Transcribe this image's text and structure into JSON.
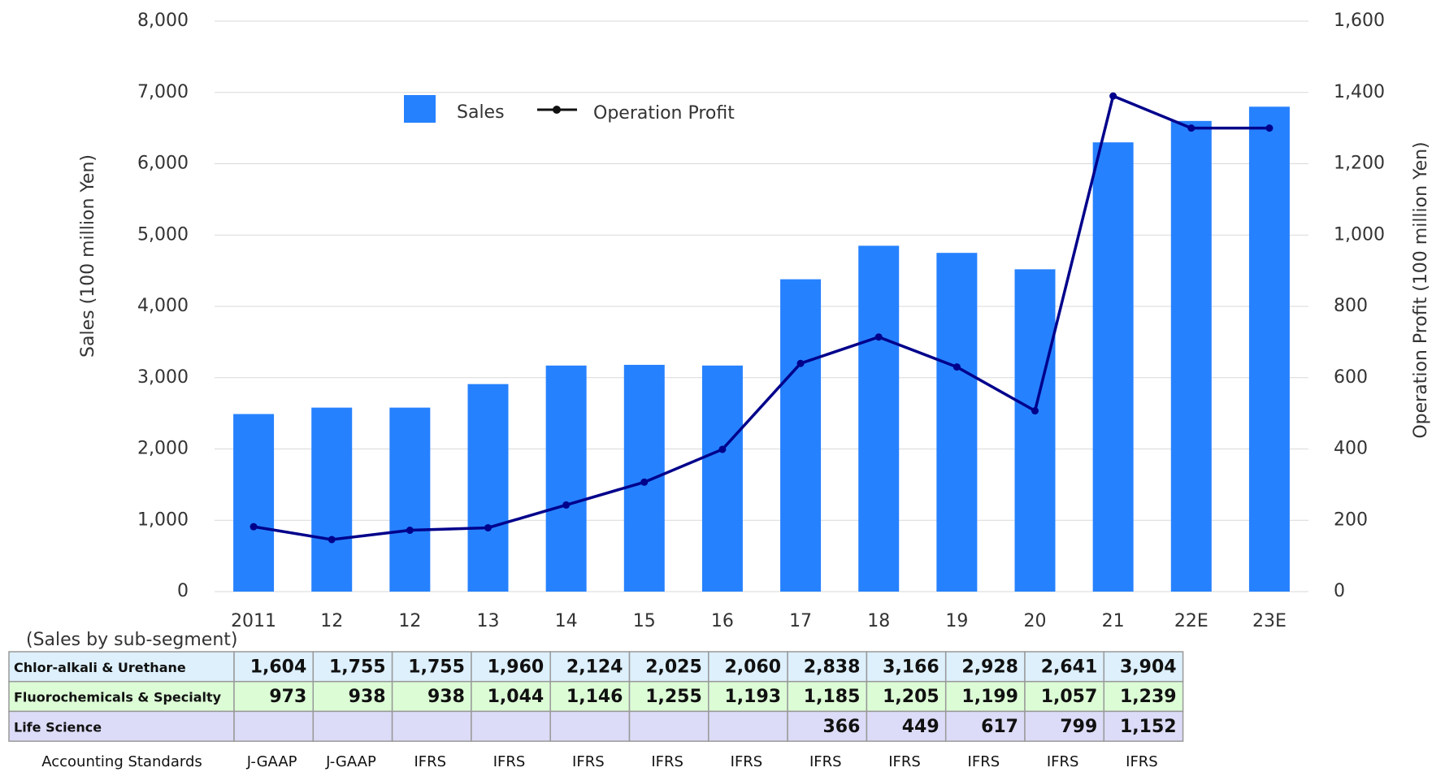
{
  "chart_data": {
    "type": "bar_line",
    "categories": [
      "2011",
      "12",
      "12",
      "13",
      "14",
      "15",
      "16",
      "17",
      "18",
      "19",
      "20",
      "21",
      "22E",
      "23E"
    ],
    "series": [
      {
        "name": "Sales",
        "color": "#2681ff",
        "type": "bar",
        "values": [
          2490,
          2580,
          2580,
          2910,
          3170,
          3180,
          3170,
          4380,
          4850,
          4750,
          4520,
          6300,
          6600,
          6800
        ]
      },
      {
        "name": "Operation Profit",
        "color": "#00008b",
        "type": "line",
        "axis": "y2",
        "values": [
          182,
          146,
          172,
          179,
          243,
          307,
          399,
          640,
          714,
          630,
          507,
          1390,
          1300,
          1300
        ]
      }
    ],
    "ylabel": "Sales (100 million Yen)",
    "y2label": "Operation Profit (100 million Yen)",
    "ylim": [
      0,
      8000
    ],
    "yticks": [
      {
        "value": 0,
        "label": "0"
      },
      {
        "value": 1000,
        "label": "1,000"
      },
      {
        "value": 2000,
        "label": "2,000"
      },
      {
        "value": 3000,
        "label": "3,000"
      },
      {
        "value": 4000,
        "label": "4,000"
      },
      {
        "value": 5000,
        "label": "5,000"
      },
      {
        "value": 6000,
        "label": "6,000"
      },
      {
        "value": 7000,
        "label": "7,000"
      },
      {
        "value": 8000,
        "label": "8,000"
      }
    ],
    "y2lim": [
      0,
      1600
    ],
    "y2ticks": [
      {
        "value": 0,
        "label": "0"
      },
      {
        "value": 200,
        "label": "200"
      },
      {
        "value": 400,
        "label": "400"
      },
      {
        "value": 600,
        "label": "600"
      },
      {
        "value": 800,
        "label": "800"
      },
      {
        "value": 1000,
        "label": "1,000"
      },
      {
        "value": 1200,
        "label": "1,200"
      },
      {
        "value": 1400,
        "label": "1,400"
      },
      {
        "value": 1600,
        "label": "1,600"
      }
    ],
    "grid": true,
    "legend": "top"
  },
  "table": {
    "caption": "(Sales by sub-segment)",
    "rows": [
      {
        "label": "Chlor-alkali & Urethane",
        "color": "#ddf0fc",
        "values": [
          "1,604",
          "1,755",
          "1,755",
          "1,960",
          "2,124",
          "2,025",
          "2,060",
          "2,838",
          "3,166",
          "2,928",
          "2,641",
          "3,904"
        ]
      },
      {
        "label": "Fluorochemicals & Specialty",
        "color": "#dcfcd6",
        "values": [
          "973",
          "938",
          "938",
          "1,044",
          "1,146",
          "1,255",
          "1,193",
          "1,185",
          "1,205",
          "1,199",
          "1,057",
          "1,239"
        ]
      },
      {
        "label": "Life Science",
        "color": "#dcdcf8",
        "values": [
          null,
          null,
          null,
          null,
          null,
          null,
          null,
          "366",
          "449",
          "617",
          "799",
          "1,152"
        ]
      }
    ],
    "accounting": {
      "label": "Accounting Standards",
      "values": [
        "J-GAAP",
        "J-GAAP",
        "IFRS",
        "IFRS",
        "IFRS",
        "IFRS",
        "IFRS",
        "IFRS",
        "IFRS",
        "IFRS",
        "IFRS",
        "IFRS"
      ]
    }
  }
}
